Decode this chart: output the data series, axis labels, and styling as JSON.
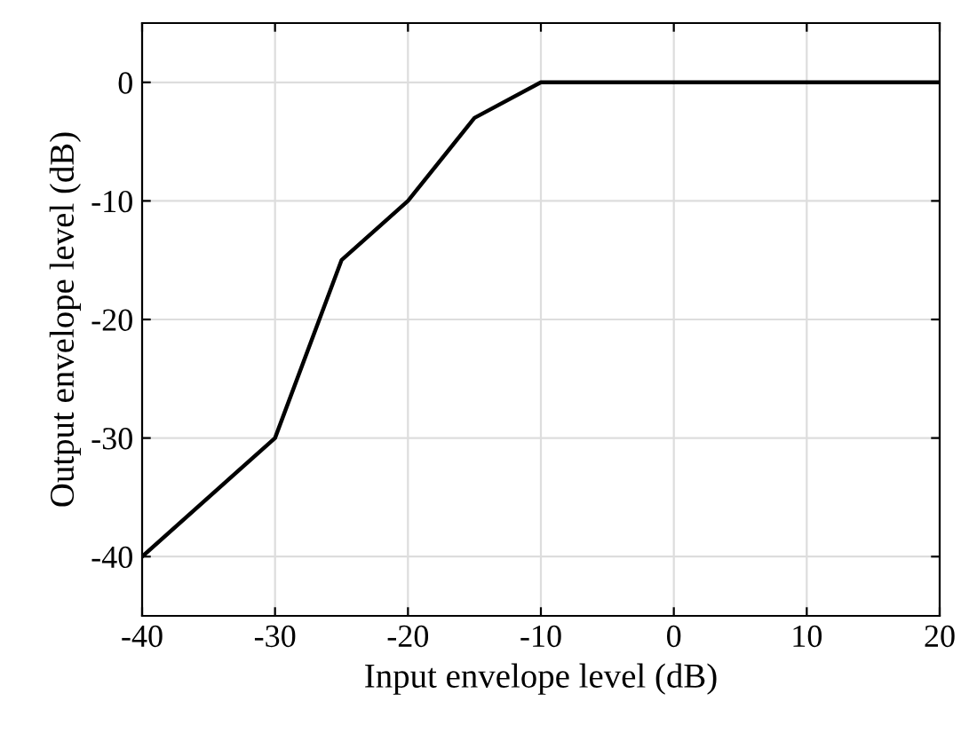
{
  "chart_data": {
    "type": "line",
    "xlabel": "Input envelope level (dB)",
    "ylabel": "Output envelope level (dB)",
    "x": [
      -40,
      -30,
      -25,
      -20,
      -15,
      -10,
      20
    ],
    "series": [
      {
        "color": "#000000",
        "values": [
          -40,
          -30,
          -15,
          -10,
          -3,
          0,
          0
        ]
      }
    ],
    "xlim": [
      -40,
      20
    ],
    "xticks": [
      -40,
      -30,
      -20,
      -10,
      0,
      10,
      20
    ],
    "ylim": [
      -45,
      5
    ],
    "yticks": [
      -40,
      -30,
      -20,
      -10,
      0
    ],
    "grid": true,
    "marker": "none",
    "line_style": "solid"
  }
}
